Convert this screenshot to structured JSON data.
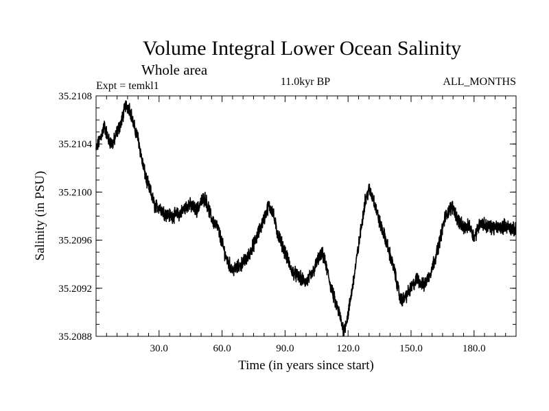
{
  "chart_data": {
    "type": "line",
    "title": "Volume Integral Lower Ocean Salinity",
    "subtitle": "Whole area",
    "expt_label": "Expt = temkl1",
    "period_label": "11.0kyr BP",
    "months_label": "ALL_MONTHS",
    "xlabel": "Time (in years since start)",
    "ylabel": "Salinity (in PSU)",
    "xlim": [
      0,
      200
    ],
    "ylim": [
      35.2088,
      35.2108
    ],
    "x_ticks": [
      30,
      60,
      90,
      120,
      150,
      180
    ],
    "x_tick_labels": [
      "30.0",
      "60.0",
      "90.0",
      "120.0",
      "150.0",
      "180.0"
    ],
    "y_ticks": [
      35.2088,
      35.2092,
      35.2096,
      35.21,
      35.2104,
      35.2108
    ],
    "y_tick_labels": [
      "35.2088",
      "35.2092",
      "35.2096",
      "35.2100",
      "35.2104",
      "35.2108"
    ],
    "series": [
      {
        "name": "salinity",
        "color": "#000000",
        "x": [
          0,
          2,
          4,
          6,
          8,
          10,
          12,
          14,
          16,
          18,
          20,
          22,
          24,
          26,
          28,
          30,
          33,
          36,
          40,
          44,
          48,
          50,
          52,
          55,
          58,
          62,
          65,
          68,
          72,
          76,
          80,
          82,
          84,
          86,
          90,
          93,
          96,
          100,
          103,
          106,
          108,
          110,
          112,
          114,
          116,
          117,
          118,
          120,
          122,
          125,
          128,
          130,
          132,
          135,
          138,
          142,
          145,
          147,
          150,
          153,
          156,
          159,
          162,
          164,
          166,
          168,
          170,
          172,
          175,
          178,
          180,
          183,
          186,
          190,
          195,
          200
        ],
        "values": [
          35.21035,
          35.21045,
          35.21055,
          35.21043,
          35.2104,
          35.2105,
          35.21058,
          35.21072,
          35.2107,
          35.21055,
          35.21045,
          35.21025,
          35.2101,
          35.21,
          35.20988,
          35.20988,
          35.20982,
          35.2098,
          35.20982,
          35.2099,
          35.20985,
          35.20992,
          35.20995,
          35.20978,
          35.2097,
          35.20945,
          35.20935,
          35.20938,
          35.20945,
          35.2096,
          35.20978,
          35.20988,
          35.20985,
          35.20968,
          35.2095,
          35.20935,
          35.2093,
          35.20925,
          35.20932,
          35.20945,
          35.20948,
          35.20935,
          35.2092,
          35.20908,
          35.20898,
          35.2089,
          35.20885,
          35.20898,
          35.2092,
          35.20955,
          35.20992,
          35.21002,
          35.20995,
          35.20975,
          35.2096,
          35.20935,
          35.2091,
          35.20912,
          35.2092,
          35.20928,
          35.20922,
          35.20932,
          35.20948,
          35.20962,
          35.20978,
          35.20985,
          35.20988,
          35.20978,
          35.2097,
          35.20972,
          35.20962,
          35.20975,
          35.20972,
          35.2097,
          35.20972,
          35.20968
        ]
      }
    ]
  }
}
